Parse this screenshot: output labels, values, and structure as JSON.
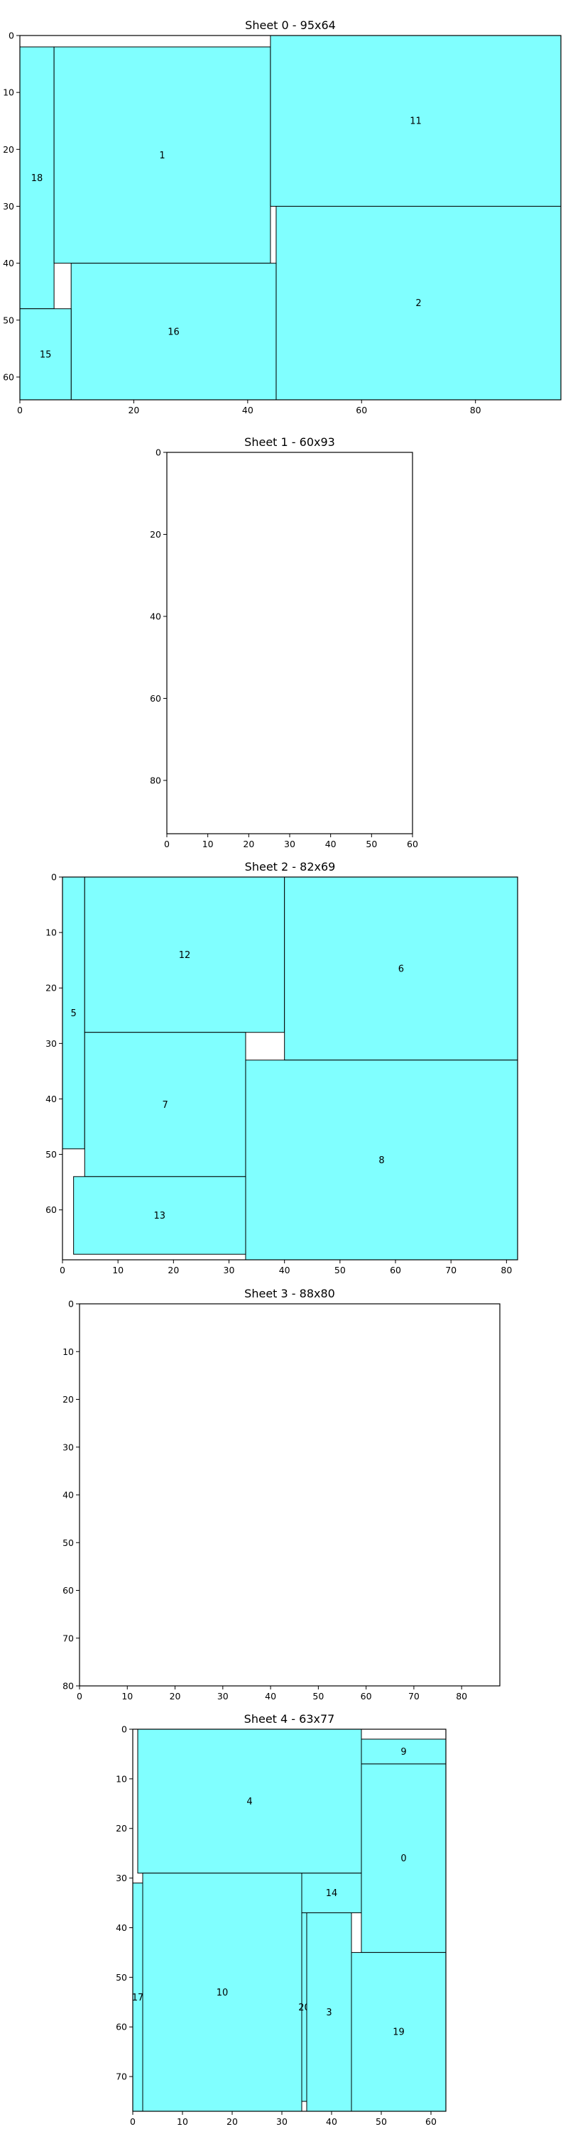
{
  "colors": {
    "piece_fill": "#80ffff",
    "piece_edge": "#000000",
    "background": "#ffffff"
  },
  "chart_data": [
    {
      "type": "rectangle-packing",
      "title": "Sheet 0 - 95x64",
      "sheet_width": 95,
      "sheet_height": 64,
      "xlim": [
        0,
        95
      ],
      "ylim": [
        64,
        0
      ],
      "x_ticks": [
        0,
        20,
        40,
        60,
        80
      ],
      "y_ticks": [
        0,
        10,
        20,
        30,
        40,
        50,
        60
      ],
      "pieces": [
        {
          "id": "18",
          "x": 0,
          "y": 2,
          "w": 6,
          "h": 46
        },
        {
          "id": "1",
          "x": 6,
          "y": 2,
          "w": 38,
          "h": 38
        },
        {
          "id": "11",
          "x": 44,
          "y": 0,
          "w": 51,
          "h": 30
        },
        {
          "id": "2",
          "x": 45,
          "y": 30,
          "w": 50,
          "h": 34
        },
        {
          "id": "16",
          "x": 9,
          "y": 40,
          "w": 36,
          "h": 24
        },
        {
          "id": "15",
          "x": 0,
          "y": 48,
          "w": 9,
          "h": 16
        }
      ]
    },
    {
      "type": "rectangle-packing",
      "title": "Sheet 1 - 60x93",
      "sheet_width": 60,
      "sheet_height": 93,
      "xlim": [
        0,
        60
      ],
      "ylim": [
        93,
        0
      ],
      "x_ticks": [
        0,
        10,
        20,
        30,
        40,
        50,
        60
      ],
      "y_ticks": [
        0,
        20,
        40,
        60,
        80
      ],
      "pieces": []
    },
    {
      "type": "rectangle-packing",
      "title": "Sheet 2 - 82x69",
      "sheet_width": 82,
      "sheet_height": 69,
      "xlim": [
        0,
        82
      ],
      "ylim": [
        69,
        0
      ],
      "x_ticks": [
        0,
        10,
        20,
        30,
        40,
        50,
        60,
        70,
        80
      ],
      "y_ticks": [
        0,
        10,
        20,
        30,
        40,
        50,
        60
      ],
      "pieces": [
        {
          "id": "5",
          "x": 0,
          "y": 0,
          "w": 4,
          "h": 49
        },
        {
          "id": "12",
          "x": 4,
          "y": 0,
          "w": 36,
          "h": 28
        },
        {
          "id": "6",
          "x": 40,
          "y": 0,
          "w": 42,
          "h": 33
        },
        {
          "id": "7",
          "x": 4,
          "y": 28,
          "w": 29,
          "h": 26
        },
        {
          "id": "8",
          "x": 33,
          "y": 33,
          "w": 49,
          "h": 36
        },
        {
          "id": "13",
          "x": 2,
          "y": 54,
          "w": 31,
          "h": 14
        }
      ]
    },
    {
      "type": "rectangle-packing",
      "title": "Sheet 3 - 88x80",
      "sheet_width": 88,
      "sheet_height": 80,
      "xlim": [
        0,
        88
      ],
      "ylim": [
        80,
        0
      ],
      "x_ticks": [
        0,
        10,
        20,
        30,
        40,
        50,
        60,
        70,
        80
      ],
      "y_ticks": [
        0,
        10,
        20,
        30,
        40,
        50,
        60,
        70,
        80
      ],
      "pieces": []
    },
    {
      "type": "rectangle-packing",
      "title": "Sheet 4 - 63x77",
      "sheet_width": 63,
      "sheet_height": 77,
      "xlim": [
        0,
        63
      ],
      "ylim": [
        77,
        0
      ],
      "x_ticks": [
        0,
        10,
        20,
        30,
        40,
        50,
        60
      ],
      "y_ticks": [
        0,
        10,
        20,
        30,
        40,
        50,
        60,
        70
      ],
      "pieces": [
        {
          "id": "4",
          "x": 1,
          "y": 0,
          "w": 45,
          "h": 29
        },
        {
          "id": "9",
          "x": 46,
          "y": 2,
          "w": 17,
          "h": 5
        },
        {
          "id": "0",
          "x": 46,
          "y": 7,
          "w": 17,
          "h": 38
        },
        {
          "id": "14",
          "x": 34,
          "y": 29,
          "w": 12,
          "h": 8
        },
        {
          "id": "17",
          "x": 0,
          "y": 31,
          "w": 2,
          "h": 46
        },
        {
          "id": "10",
          "x": 2,
          "y": 29,
          "w": 32,
          "h": 48
        },
        {
          "id": "20",
          "x": 34,
          "y": 37,
          "w": 1,
          "h": 38
        },
        {
          "id": "3",
          "x": 35,
          "y": 37,
          "w": 9,
          "h": 40
        },
        {
          "id": "19",
          "x": 44,
          "y": 45,
          "w": 19,
          "h": 32
        }
      ]
    }
  ]
}
